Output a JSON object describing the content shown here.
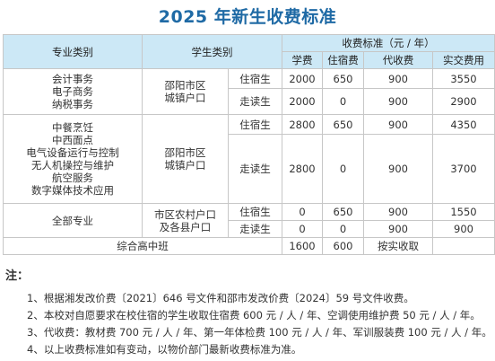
{
  "title": "2025 年新生收费标准",
  "header": {
    "major": "专业类别",
    "student_type": "学生类别",
    "fee_standard": "收费标准（元 / 年）",
    "tuition": "学费",
    "lodging": "住宿费",
    "agency": "代收费",
    "actual": "实交费用"
  },
  "groups": [
    {
      "majors": [
        "会计事务",
        "电子商务",
        "纳税事务"
      ],
      "hukou": [
        "邵阳市区",
        "城镇户口"
      ],
      "rows": [
        {
          "type": "住宿生",
          "tuition": "2000",
          "lodging": "650",
          "agency": "900",
          "actual": "3550"
        },
        {
          "type": "走读生",
          "tuition": "2000",
          "lodging": "0",
          "agency": "900",
          "actual": "2900"
        }
      ]
    },
    {
      "majors": [
        "中餐烹饪",
        "中西面点",
        "电气设备运行与控制",
        "无人机操控与维护",
        "航空服务",
        "数字媒体技术应用"
      ],
      "hukou": [
        "邵阳市区",
        "城镇户口"
      ],
      "rows": [
        {
          "type": "住宿生",
          "tuition": "2800",
          "lodging": "650",
          "agency": "900",
          "actual": "4350"
        },
        {
          "type": "走读生",
          "tuition": "2800",
          "lodging": "0",
          "agency": "900",
          "actual": "3700"
        }
      ]
    },
    {
      "majors": [
        "全部专业"
      ],
      "hukou": [
        "市区农村户口",
        "及各县户口"
      ],
      "rows": [
        {
          "type": "住宿生",
          "tuition": "0",
          "lodging": "650",
          "agency": "900",
          "actual": "1550"
        },
        {
          "type": "走读生",
          "tuition": "0",
          "lodging": "0",
          "agency": "900",
          "actual": "900"
        }
      ]
    }
  ],
  "last_row": {
    "major": "综合高中班",
    "tuition": "1600",
    "lodging": "600",
    "agency": "按实收取",
    "actual": ""
  },
  "notes": {
    "title": "注：",
    "items": [
      "1、根据湘发改价费〔2021〕646 号文件和邵市发改价费〔2024〕59 号文件收费。",
      "2、本校对自愿要求在校住宿的学生收取住宿费 600 元 / 人 / 年、空调使用维护费 50 元 / 人 / 年。",
      "3、代收费：教材费 700 元 / 人 / 年、第一年体检费 100 元 / 人 / 年、军训服装费 100 元 / 人 / 年。",
      "4、以上收费标准如有变动，以物价部门最新收费标准为准。"
    ]
  },
  "colors": {
    "title": "#1f6aa5",
    "header_bg": "#cce8f6",
    "border": "#c7c7c7"
  }
}
